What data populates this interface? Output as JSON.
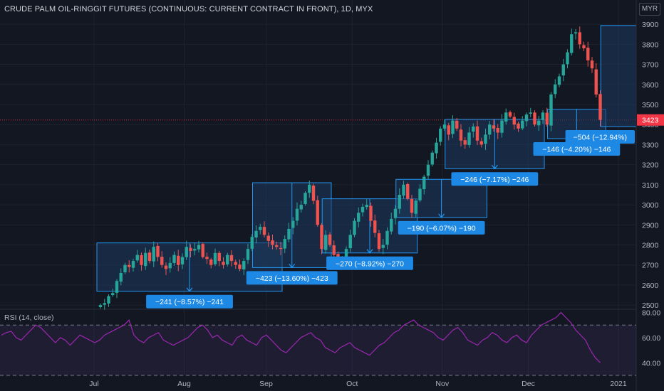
{
  "header": {
    "title": "CRUDE PALM OIL-RINGGIT FUTURES (CONTINUOUS: CURRENT CONTRACT IN FRONT), 1D, MYX",
    "currency": "MYR"
  },
  "colors": {
    "background": "#131722",
    "up": "#26a69a",
    "down": "#ef5350",
    "box_fill": "#1e3a5f",
    "box_border": "#2196f3",
    "label_bg": "#1e88e5",
    "rsi_line": "#9c27b0",
    "last_price": "#f23645",
    "grid": "#1e222d",
    "axis_text": "#b2b5be"
  },
  "rsi": {
    "label": "RSI (14, close)",
    "ticks": [
      "80.00",
      "60.00",
      "40.00"
    ]
  },
  "chart_data": {
    "type": "candlestick",
    "title": "CRUDE PALM OIL-RINGGIT FUTURES (CONTINUOUS: CURRENT CONTRACT IN FRONT), 1D, MYX",
    "ylim": [
      2490,
      3950
    ],
    "y_ticks": [
      2500,
      2600,
      2700,
      2800,
      2900,
      3000,
      3100,
      3200,
      3300,
      3400,
      3500,
      3600,
      3700,
      3800,
      3900
    ],
    "x_ticks": [
      {
        "label": "Jul",
        "index": 8
      },
      {
        "label": "Aug",
        "index": 30
      },
      {
        "label": "Sep",
        "index": 50
      },
      {
        "label": "Oct",
        "index": 71
      },
      {
        "label": "Nov",
        "index": 93
      },
      {
        "label": "Dec",
        "index": 114
      },
      {
        "label": "2021",
        "index": 136
      }
    ],
    "last_price": 3423,
    "last_price_label": "3423",
    "closes": [
      2500,
      2510,
      2545,
      2560,
      2620,
      2660,
      2700,
      2690,
      2720,
      2750,
      2700,
      2760,
      2720,
      2790,
      2740,
      2700,
      2680,
      2710,
      2750,
      2700,
      2740,
      2790,
      2770,
      2780,
      2800,
      2740,
      2730,
      2700,
      2760,
      2720,
      2700,
      2750,
      2720,
      2700,
      2680,
      2720,
      2780,
      2840,
      2870,
      2890,
      2850,
      2820,
      2800,
      2790,
      2780,
      2830,
      2880,
      2920,
      2980,
      3000,
      3060,
      3100,
      3020,
      2900,
      2780,
      2850,
      2800,
      2750,
      2700,
      2720,
      2780,
      2850,
      2920,
      2960,
      2990,
      3000,
      2920,
      2860,
      2780,
      2800,
      2870,
      2930,
      2980,
      3050,
      3100,
      3030,
      2960,
      3020,
      3080,
      3140,
      3200,
      3260,
      3310,
      3380,
      3400,
      3350,
      3420,
      3380,
      3320,
      3300,
      3360,
      3390,
      3320,
      3300,
      3350,
      3400,
      3380,
      3360,
      3420,
      3460,
      3440,
      3400,
      3380,
      3420,
      3450,
      3460,
      3400,
      3420,
      3460,
      3400,
      3550,
      3600,
      3640,
      3700,
      3760,
      3850,
      3860,
      3800,
      3780,
      3720,
      3680,
      3550,
      3423
    ],
    "boxes": [
      {
        "from_index": 0,
        "to_index": 44,
        "high": 2810,
        "low": 2569,
        "label": "−241 (−8.57%) −241"
      },
      {
        "from_index": 38,
        "to_index": 56,
        "high": 3110,
        "low": 2687,
        "label": "−423 (−13.60%) −423"
      },
      {
        "from_index": 55,
        "to_index": 77,
        "high": 3030,
        "low": 2760,
        "label": "−270 (−8.92%) −270"
      },
      {
        "from_index": 73,
        "to_index": 94,
        "high": 3127,
        "low": 2937,
        "label": "−190 (−6.07%) −190"
      },
      {
        "from_index": 85,
        "to_index": 108,
        "high": 3426,
        "low": 3180,
        "label": "−246 (−7.17%) −246"
      },
      {
        "from_index": 110,
        "to_index": 123,
        "high": 3476,
        "low": 3330,
        "label": "−146 (−4.20%) −146"
      },
      {
        "from_index": 123,
        "to_index": 143,
        "high": 3894,
        "low": 3390,
        "label": "−504 (−12.94%)"
      }
    ],
    "rsi_values": [
      62,
      64,
      65,
      60,
      58,
      62,
      66,
      70,
      68,
      64,
      60,
      56,
      60,
      58,
      54,
      58,
      62,
      60,
      58,
      56,
      58,
      62,
      64,
      66,
      68,
      70,
      74,
      62,
      58,
      56,
      60,
      62,
      64,
      58,
      56,
      54,
      56,
      58,
      60,
      64,
      68,
      70,
      66,
      60,
      62,
      58,
      56,
      54,
      60,
      62,
      58,
      56,
      54,
      60,
      62,
      58,
      54,
      50,
      48,
      52,
      56,
      60,
      62,
      64,
      60,
      58,
      52,
      50,
      48,
      52,
      54,
      56,
      52,
      50,
      48,
      46,
      50,
      54,
      56,
      60,
      64,
      66,
      70,
      72,
      74,
      70,
      68,
      66,
      64,
      60,
      58,
      62,
      66,
      68,
      64,
      58,
      56,
      54,
      58,
      60,
      64,
      62,
      58,
      56,
      60,
      62,
      58,
      56,
      62,
      66,
      70,
      72,
      74,
      76,
      80,
      76,
      72,
      66,
      62,
      58,
      50,
      44,
      40
    ],
    "rsi_ylim": [
      30,
      82
    ],
    "rsi_bands": [
      70,
      30
    ]
  }
}
